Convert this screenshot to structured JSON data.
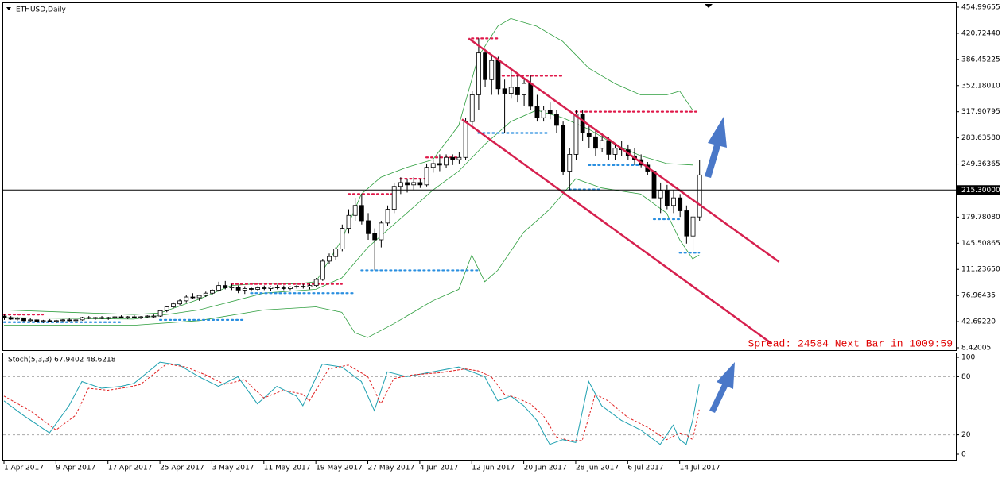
{
  "chart_data": {
    "type": "candlestick",
    "title": "ETHUSD,Daily",
    "categories": [
      "1 Apr 2017",
      null,
      null,
      null,
      null,
      null,
      null,
      null,
      "9 Apr 2017",
      null,
      null,
      null,
      null,
      null,
      null,
      null,
      "17 Apr 2017",
      null,
      null,
      null,
      null,
      null,
      null,
      null,
      "25 Apr 2017",
      null,
      null,
      null,
      null,
      null,
      null,
      null,
      "3 May 2017",
      null,
      null,
      null,
      null,
      null,
      null,
      null,
      "11 May 2017",
      null,
      null,
      null,
      null,
      null,
      null,
      null,
      "19 May 2017",
      null,
      null,
      null,
      null,
      null,
      null,
      null,
      "27 May 2017",
      null,
      null,
      null,
      null,
      null,
      null,
      null,
      "4 Jun 2017",
      null,
      null,
      null,
      null,
      null,
      null,
      null,
      "12 Jun 2017",
      null,
      null,
      null,
      null,
      null,
      null,
      null,
      "20 Jun 2017",
      null,
      null,
      null,
      null,
      null,
      null,
      null,
      "28 Jun 2017",
      null,
      null,
      null,
      null,
      null,
      null,
      null,
      "6 Jul 2017",
      null,
      null,
      null,
      null,
      null,
      null,
      null,
      "14 Jul 2017",
      null,
      null,
      null
    ],
    "ohlc": [
      [
        50,
        52,
        45,
        48
      ],
      [
        48,
        50,
        45,
        46
      ],
      [
        46,
        49,
        44,
        47
      ],
      [
        47,
        48,
        43,
        44
      ],
      [
        44,
        47,
        42,
        45
      ],
      [
        45,
        46,
        42,
        43
      ],
      [
        43,
        45,
        41,
        44
      ],
      [
        44,
        46,
        42,
        43
      ],
      [
        43,
        45,
        41,
        44
      ],
      [
        44,
        46,
        43,
        45
      ],
      [
        45,
        47,
        43,
        44
      ],
      [
        44,
        46,
        42,
        45
      ],
      [
        45,
        49,
        44,
        48
      ],
      [
        48,
        50,
        46,
        47
      ],
      [
        47,
        49,
        45,
        48
      ],
      [
        48,
        50,
        46,
        47
      ],
      [
        47,
        49,
        45,
        48
      ],
      [
        48,
        50,
        46,
        49
      ],
      [
        49,
        51,
        47,
        48
      ],
      [
        48,
        50,
        46,
        49
      ],
      [
        49,
        51,
        47,
        48
      ],
      [
        48,
        50,
        46,
        49
      ],
      [
        49,
        51,
        47,
        50
      ],
      [
        50,
        52,
        48,
        50
      ],
      [
        50,
        58,
        49,
        57
      ],
      [
        57,
        63,
        55,
        62
      ],
      [
        62,
        68,
        60,
        66
      ],
      [
        66,
        72,
        64,
        70
      ],
      [
        70,
        78,
        68,
        75
      ],
      [
        75,
        80,
        72,
        74
      ],
      [
        74,
        78,
        70,
        77
      ],
      [
        77,
        82,
        75,
        80
      ],
      [
        80,
        85,
        78,
        84
      ],
      [
        84,
        95,
        82,
        90
      ],
      [
        90,
        96,
        85,
        87
      ],
      [
        87,
        92,
        84,
        88
      ],
      [
        88,
        90,
        80,
        84
      ],
      [
        84,
        89,
        79,
        86
      ],
      [
        86,
        88,
        82,
        85
      ],
      [
        85,
        89,
        83,
        87
      ],
      [
        87,
        90,
        84,
        86
      ],
      [
        86,
        89,
        83,
        88
      ],
      [
        88,
        91,
        85,
        87
      ],
      [
        87,
        90,
        84,
        86
      ],
      [
        86,
        89,
        84,
        88
      ],
      [
        88,
        91,
        86,
        89
      ],
      [
        89,
        92,
        86,
        88
      ],
      [
        88,
        92,
        85,
        90
      ],
      [
        90,
        100,
        88,
        98
      ],
      [
        98,
        125,
        96,
        122
      ],
      [
        122,
        132,
        118,
        128
      ],
      [
        128,
        140,
        124,
        138
      ],
      [
        138,
        170,
        135,
        165
      ],
      [
        165,
        190,
        158,
        182
      ],
      [
        182,
        205,
        175,
        195
      ],
      [
        195,
        210,
        170,
        175
      ],
      [
        175,
        185,
        150,
        158
      ],
      [
        158,
        165,
        110,
        150
      ],
      [
        150,
        175,
        140,
        172
      ],
      [
        172,
        195,
        168,
        190
      ],
      [
        190,
        225,
        185,
        220
      ],
      [
        220,
        232,
        210,
        225
      ],
      [
        225,
        230,
        212,
        222
      ],
      [
        222,
        232,
        215,
        225
      ],
      [
        225,
        230,
        218,
        222
      ],
      [
        222,
        250,
        220,
        245
      ],
      [
        245,
        255,
        238,
        250
      ],
      [
        250,
        262,
        240,
        248
      ],
      [
        248,
        262,
        244,
        258
      ],
      [
        258,
        262,
        248,
        255
      ],
      [
        255,
        265,
        250,
        258
      ],
      [
        258,
        310,
        255,
        305
      ],
      [
        305,
        345,
        300,
        340
      ],
      [
        340,
        414,
        320,
        395
      ],
      [
        395,
        400,
        350,
        360
      ],
      [
        360,
        392,
        340,
        385
      ],
      [
        385,
        390,
        340,
        348
      ],
      [
        348,
        360,
        290,
        342
      ],
      [
        342,
        372,
        335,
        350
      ],
      [
        350,
        365,
        330,
        340
      ],
      [
        340,
        360,
        325,
        355
      ],
      [
        355,
        365,
        320,
        325
      ],
      [
        325,
        340,
        305,
        310
      ],
      [
        310,
        325,
        305,
        320
      ],
      [
        320,
        330,
        308,
        315
      ],
      [
        315,
        320,
        290,
        300
      ],
      [
        300,
        305,
        235,
        240
      ],
      [
        240,
        270,
        215,
        262
      ],
      [
        262,
        320,
        255,
        315
      ],
      [
        315,
        320,
        280,
        290
      ],
      [
        290,
        300,
        270,
        285
      ],
      [
        285,
        295,
        260,
        270
      ],
      [
        270,
        290,
        265,
        280
      ],
      [
        280,
        285,
        255,
        262
      ],
      [
        262,
        275,
        255,
        270
      ],
      [
        270,
        280,
        260,
        268
      ],
      [
        268,
        275,
        255,
        260
      ],
      [
        260,
        270,
        248,
        255
      ],
      [
        255,
        262,
        245,
        248
      ],
      [
        248,
        252,
        235,
        240
      ],
      [
        240,
        248,
        200,
        205
      ],
      [
        205,
        225,
        185,
        215
      ],
      [
        215,
        222,
        190,
        195
      ],
      [
        195,
        215,
        185,
        205
      ],
      [
        205,
        210,
        180,
        188
      ],
      [
        188,
        195,
        145,
        155
      ],
      [
        155,
        185,
        135,
        180
      ],
      [
        180,
        255,
        175,
        235
      ]
    ],
    "ylim": [
      8.42005,
      454.99655
    ],
    "yticks": [
      {
        "value": 454.99655,
        "label": "454.99655"
      },
      {
        "value": 420.7244,
        "label": "420.72440"
      },
      {
        "value": 386.45225,
        "label": "386.45225"
      },
      {
        "value": 352.1801,
        "label": "352.18010"
      },
      {
        "value": 317.90795,
        "label": "317.90795"
      },
      {
        "value": 283.6358,
        "label": "283.63580"
      },
      {
        "value": 249.36365,
        "label": "249.36365"
      },
      {
        "value": 179.7808,
        "label": "179.78080"
      },
      {
        "value": 145.50865,
        "label": "145.50865"
      },
      {
        "value": 111.2365,
        "label": "111.23650"
      },
      {
        "value": 76.96435,
        "label": "76.96435"
      },
      {
        "value": 42.6922,
        "label": "42.69220"
      },
      {
        "value": 8.42005,
        "label": "8.42005"
      }
    ],
    "current_price": {
      "value": 215.3,
      "label": "215.30000"
    },
    "bands": [
      {
        "name": null,
        "color": "#2e9e3e",
        "x": [
          0,
          10,
          20,
          24,
          30,
          35,
          40,
          45,
          48,
          52,
          55,
          58,
          62,
          66,
          70,
          73,
          76,
          78,
          82,
          86,
          90,
          94,
          98,
          102,
          104,
          106
        ],
        "values": [
          58,
          55,
          52,
          54,
          72,
          90,
          93,
          92,
          95,
          150,
          210,
          232,
          245,
          255,
          300,
          390,
          430,
          440,
          430,
          410,
          375,
          355,
          340,
          340,
          345,
          320
        ]
      },
      {
        "name": null,
        "color": "#2e9e3e",
        "x": [
          0,
          20,
          30,
          40,
          48,
          52,
          56,
          60,
          66,
          70,
          74,
          78,
          82,
          86,
          90,
          94,
          98,
          102,
          106
        ],
        "values": [
          48,
          46,
          58,
          80,
          85,
          100,
          140,
          170,
          215,
          240,
          275,
          305,
          320,
          310,
          295,
          275,
          260,
          250,
          248
        ]
      },
      {
        "name": null,
        "color": "#2e9e3e",
        "x": [
          0,
          20,
          30,
          40,
          48,
          52,
          54,
          56,
          60,
          66,
          70,
          72,
          74,
          76,
          80,
          84,
          86,
          88,
          92,
          98,
          102,
          104,
          106,
          107
        ],
        "values": [
          38,
          38,
          44,
          58,
          62,
          55,
          28,
          22,
          40,
          70,
          85,
          130,
          95,
          110,
          160,
          190,
          210,
          230,
          218,
          210,
          185,
          150,
          125,
          130
        ]
      }
    ],
    "channel": {
      "color": "#d6204e",
      "lines": [
        {
          "x": [
            71.5,
            119.3
          ],
          "values": [
            414,
            121
          ]
        },
        {
          "x": [
            70.5,
            118
          ],
          "values": [
            308,
            15
          ]
        }
      ]
    },
    "levels": [
      {
        "color": "#e0194a",
        "x": [
          72,
          76
        ],
        "value": 414
      },
      {
        "color": "#e0194a",
        "x": [
          76,
          86
        ],
        "value": 365
      },
      {
        "color": "#e0194a",
        "x": [
          88,
          107
        ],
        "value": 318
      },
      {
        "color": "#e0194a",
        "x": [
          53,
          60
        ],
        "value": 210
      },
      {
        "color": "#e0194a",
        "x": [
          61,
          65
        ],
        "value": 230
      },
      {
        "color": "#e0194a",
        "x": [
          65,
          70
        ],
        "value": 258
      },
      {
        "color": "#e0194a",
        "x": [
          35,
          52
        ],
        "value": 92
      },
      {
        "color": "#e0194a",
        "x": [
          0,
          6
        ],
        "value": 52
      },
      {
        "color": "#2a8fe0",
        "x": [
          73,
          84
        ],
        "value": 290
      },
      {
        "color": "#2a8fe0",
        "x": [
          55,
          73
        ],
        "value": 110
      },
      {
        "color": "#2a8fe0",
        "x": [
          38,
          54
        ],
        "value": 80
      },
      {
        "color": "#2a8fe0",
        "x": [
          24,
          37
        ],
        "value": 45
      },
      {
        "color": "#2a8fe0",
        "x": [
          0,
          18
        ],
        "value": 42
      },
      {
        "color": "#2a8fe0",
        "x": [
          90,
          98
        ],
        "value": 248
      },
      {
        "color": "#2a8fe0",
        "x": [
          87,
          92
        ],
        "value": 216
      },
      {
        "color": "#2a8fe0",
        "x": [
          100,
          104
        ],
        "value": 177
      },
      {
        "color": "#2a8fe0",
        "x": [
          104,
          107
        ],
        "value": 133
      }
    ],
    "annotation": "Spread: 24584 Next Bar in 1009:59",
    "stoch": {
      "title": "Stoch(5,3,3) 67.9402 48.6218",
      "ylim": [
        0,
        100
      ],
      "yticks": [
        100,
        80,
        20,
        0
      ],
      "series": [
        {
          "name": null,
          "color": "#1ea0b0",
          "x": [
            0,
            3,
            7,
            10,
            12,
            15,
            18,
            20,
            24,
            27,
            30,
            33,
            36,
            39,
            42,
            45,
            46,
            49,
            52,
            55,
            57,
            59,
            62,
            66,
            70,
            72,
            74,
            76,
            78,
            80,
            82,
            84,
            86,
            88,
            90,
            92,
            95,
            98,
            101,
            103,
            104,
            105,
            106,
            107
          ],
          "values": [
            55,
            40,
            22,
            50,
            75,
            68,
            70,
            73,
            95,
            92,
            80,
            70,
            80,
            52,
            70,
            60,
            50,
            93,
            90,
            75,
            45,
            85,
            80,
            85,
            90,
            85,
            80,
            55,
            60,
            50,
            35,
            10,
            15,
            12,
            75,
            50,
            35,
            25,
            10,
            30,
            15,
            10,
            35,
            72
          ]
        },
        {
          "name": null,
          "color": "#e02020",
          "x": [
            0,
            4,
            8,
            11,
            13,
            16,
            19,
            21,
            25,
            28,
            31,
            34,
            37,
            40,
            43,
            46,
            47,
            50,
            53,
            56,
            58,
            60,
            63,
            67,
            71,
            73,
            75,
            77,
            79,
            81,
            83,
            85,
            87,
            89,
            91,
            93,
            96,
            99,
            102,
            104,
            105,
            106,
            107
          ],
          "values": [
            60,
            45,
            25,
            40,
            68,
            66,
            69,
            72,
            93,
            90,
            82,
            72,
            77,
            58,
            66,
            62,
            55,
            88,
            92,
            80,
            52,
            78,
            82,
            84,
            88,
            86,
            80,
            62,
            58,
            52,
            40,
            18,
            14,
            14,
            62,
            55,
            38,
            28,
            15,
            22,
            20,
            15,
            46
          ]
        }
      ]
    }
  }
}
